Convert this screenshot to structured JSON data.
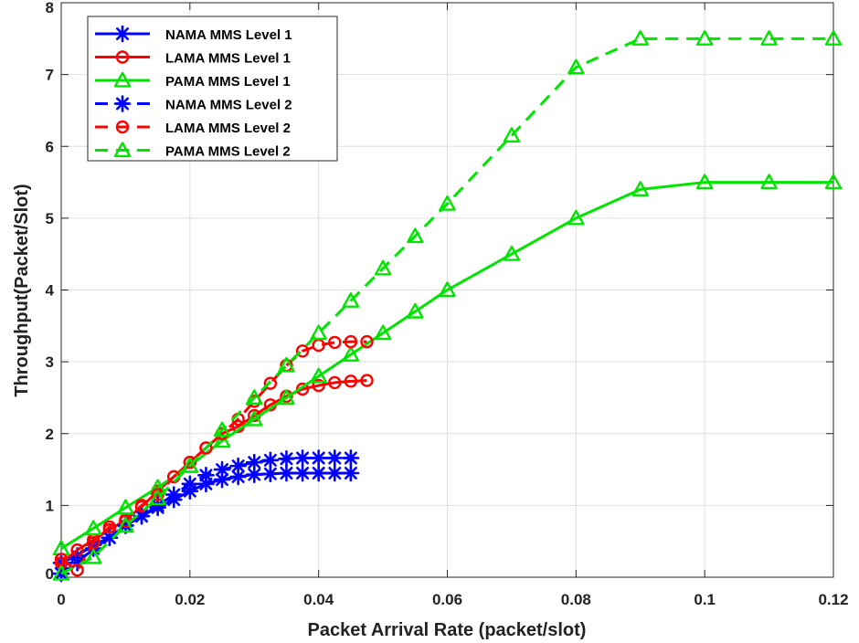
{
  "chart_data": {
    "type": "line",
    "xlabel": "Packet Arrival Rate (packet/slot)",
    "ylabel": "Throughput(Packet/Slot)",
    "xlim": [
      0,
      0.12
    ],
    "ylim": [
      0,
      8
    ],
    "xticks": [
      0,
      0.02,
      0.04,
      0.06,
      0.08,
      0.1,
      0.12
    ],
    "xtick_labels": [
      "0",
      "0.02",
      "0.04",
      "0.06",
      "0.08",
      "0.1",
      "0.12"
    ],
    "yticks": [
      0,
      1,
      2,
      3,
      4,
      5,
      6,
      7,
      8
    ],
    "ytick_labels": [
      "0",
      "1",
      "2",
      "3",
      "4",
      "5",
      "6",
      "7",
      "8"
    ],
    "grid": true,
    "legend_position": "top-left",
    "series": [
      {
        "name": "NAMA MMS Level 1",
        "color": "#0000ff",
        "line_style": "solid",
        "marker": "asterisk",
        "x": [
          0.0,
          0.0025,
          0.005,
          0.0075,
          0.01,
          0.0125,
          0.015,
          0.0175,
          0.02,
          0.0225,
          0.025,
          0.0275,
          0.03,
          0.0325,
          0.035,
          0.0375,
          0.04,
          0.0425,
          0.045
        ],
        "y": [
          0.2,
          0.3,
          0.45,
          0.55,
          0.72,
          0.85,
          0.97,
          1.08,
          1.2,
          1.3,
          1.36,
          1.4,
          1.43,
          1.44,
          1.45,
          1.45,
          1.45,
          1.45,
          1.45
        ]
      },
      {
        "name": "LAMA MMS Level 1",
        "color": "#ff0000",
        "line_style": "solid",
        "marker": "circle",
        "x": [
          0.0,
          0.0025,
          0.005,
          0.0075,
          0.01,
          0.0125,
          0.015,
          0.0175,
          0.02,
          0.0225,
          0.025,
          0.0275,
          0.03,
          0.0325,
          0.035,
          0.0375,
          0.04,
          0.0425,
          0.045,
          0.0475
        ],
        "y": [
          0.2,
          0.38,
          0.52,
          0.66,
          0.8,
          0.98,
          1.2,
          1.4,
          1.6,
          1.8,
          2.0,
          2.1,
          2.25,
          2.4,
          2.52,
          2.62,
          2.67,
          2.71,
          2.73,
          2.74
        ]
      },
      {
        "name": "PAMA MMS Level 1",
        "color": "#00e400",
        "line_style": "solid",
        "marker": "triangle",
        "x": [
          0.0,
          0.005,
          0.01,
          0.015,
          0.02,
          0.025,
          0.03,
          0.035,
          0.04,
          0.045,
          0.05,
          0.055,
          0.06,
          0.07,
          0.08,
          0.09,
          0.1,
          0.11,
          0.12
        ],
        "y": [
          0.4,
          0.68,
          0.97,
          1.25,
          1.55,
          1.9,
          2.2,
          2.5,
          2.8,
          3.1,
          3.4,
          3.7,
          4.0,
          4.5,
          5.0,
          5.4,
          5.5,
          5.5,
          5.5
        ]
      },
      {
        "name": "NAMA MMS Level 2",
        "color": "#0000ff",
        "line_style": "dashed",
        "marker": "asterisk",
        "x": [
          0.0,
          0.0025,
          0.005,
          0.0075,
          0.01,
          0.0125,
          0.015,
          0.0175,
          0.02,
          0.0225,
          0.025,
          0.0275,
          0.03,
          0.0325,
          0.035,
          0.0375,
          0.04,
          0.0425,
          0.045
        ],
        "y": [
          0.05,
          0.2,
          0.4,
          0.55,
          0.72,
          0.85,
          1.0,
          1.15,
          1.3,
          1.42,
          1.5,
          1.55,
          1.6,
          1.63,
          1.65,
          1.66,
          1.66,
          1.66,
          1.66
        ]
      },
      {
        "name": "LAMA MMS Level 2",
        "color": "#ff0000",
        "line_style": "dashed",
        "marker": "circle",
        "x": [
          0.0,
          0.0025,
          0.005,
          0.0075,
          0.01,
          0.0125,
          0.015,
          0.0175,
          0.02,
          0.0225,
          0.025,
          0.0275,
          0.03,
          0.0325,
          0.035,
          0.0375,
          0.04,
          0.0425,
          0.045,
          0.0475
        ],
        "y": [
          0.25,
          0.1,
          0.48,
          0.7,
          0.78,
          1.0,
          1.15,
          1.4,
          1.6,
          1.8,
          2.0,
          2.2,
          2.45,
          2.7,
          2.95,
          3.15,
          3.23,
          3.27,
          3.28,
          3.28
        ]
      },
      {
        "name": "PAMA MMS Level 2",
        "color": "#00e400",
        "line_style": "dashed",
        "marker": "triangle",
        "x": [
          0.0,
          0.005,
          0.01,
          0.015,
          0.02,
          0.025,
          0.03,
          0.035,
          0.04,
          0.045,
          0.05,
          0.055,
          0.06,
          0.07,
          0.08,
          0.09,
          0.1,
          0.11,
          0.12
        ],
        "y": [
          0.05,
          0.28,
          0.72,
          1.1,
          1.55,
          2.05,
          2.5,
          2.95,
          3.4,
          3.85,
          4.3,
          4.75,
          5.2,
          6.15,
          7.1,
          7.5,
          7.5,
          7.5,
          7.5
        ]
      }
    ]
  }
}
